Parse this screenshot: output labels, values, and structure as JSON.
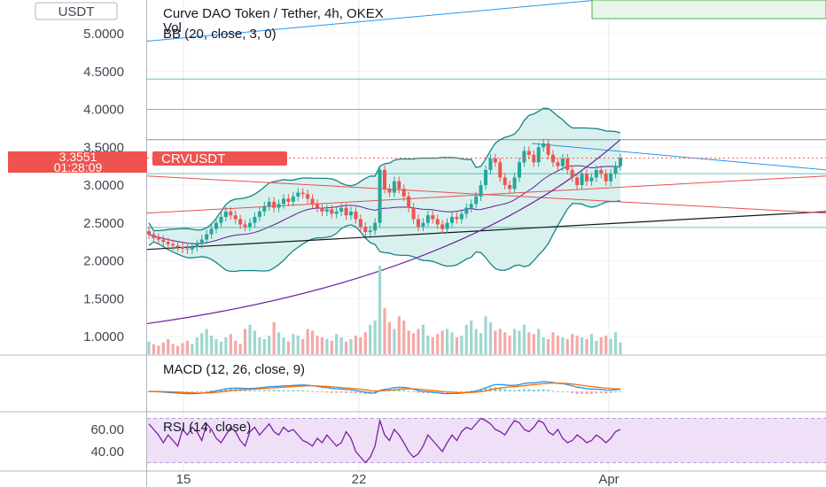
{
  "currency_label": "USDT",
  "title": "Curve DAO Token / Tether, 4h, OKEX",
  "volume_label": "Vol",
  "bb_label": "BB (20, close, 3, 0)",
  "macd_label": "MACD (12, 26, close, 9)",
  "rsi_label": "RSI (14, close)",
  "price_tag": {
    "symbol": "CRVUSDT",
    "price": "3.3551",
    "countdown": "01:28:09",
    "color": "#ef5350"
  },
  "colors": {
    "up": "#26a69a",
    "down": "#ef5350",
    "bb_band": "#138484",
    "bb_fill": "#cfeeea",
    "rsi_fill": "#efe0f7",
    "rsi_line": "#7b1fa2",
    "macd_line": "#2196f3",
    "signal_line": "#ff6d00",
    "trend_black": "#131722",
    "trend_purple": "#6a1b9a",
    "trend_red": "#e65050",
    "trend_blue": "#2196f3"
  },
  "chart_data": [
    {
      "type": "candlestick",
      "title": "Curve DAO Token / Tether, 4h, OKEX",
      "ylabel": "USDT",
      "ylim": [
        0.75,
        5.35
      ],
      "y_ticks": [
        "5.0000",
        "4.5000",
        "4.0000",
        "3.5000",
        "3.0000",
        "2.5000",
        "2.0000",
        "1.5000",
        "1.0000"
      ],
      "x_ticks": [
        "15",
        "22",
        "Apr"
      ],
      "last_price": 3.3551,
      "closes": [
        2.35,
        2.3,
        2.28,
        2.25,
        2.22,
        2.2,
        2.18,
        2.16,
        2.15,
        2.18,
        2.22,
        2.28,
        2.35,
        2.42,
        2.5,
        2.58,
        2.65,
        2.6,
        2.55,
        2.48,
        2.45,
        2.5,
        2.58,
        2.65,
        2.72,
        2.78,
        2.7,
        2.75,
        2.82,
        2.78,
        2.85,
        2.9,
        2.88,
        2.82,
        2.75,
        2.7,
        2.65,
        2.68,
        2.62,
        2.65,
        2.7,
        2.6,
        2.65,
        2.55,
        2.45,
        2.38,
        2.4,
        2.5,
        3.2,
        2.95,
        2.9,
        3.05,
        2.95,
        2.85,
        2.7,
        2.55,
        2.45,
        2.5,
        2.6,
        2.55,
        2.48,
        2.42,
        2.5,
        2.58,
        2.55,
        2.62,
        2.7,
        2.75,
        2.85,
        3.0,
        3.2,
        3.35,
        3.3,
        3.1,
        3.0,
        2.95,
        3.1,
        3.3,
        3.45,
        3.4,
        3.3,
        3.5,
        3.55,
        3.4,
        3.3,
        3.25,
        3.35,
        3.2,
        3.1,
        3.0,
        3.15,
        3.05,
        3.1,
        3.2,
        3.15,
        3.05,
        3.15,
        3.25,
        3.36
      ],
      "volumes": [
        0.15,
        0.12,
        0.1,
        0.14,
        0.18,
        0.12,
        0.1,
        0.13,
        0.16,
        0.12,
        0.2,
        0.25,
        0.3,
        0.22,
        0.18,
        0.15,
        0.2,
        0.24,
        0.16,
        0.12,
        0.3,
        0.35,
        0.28,
        0.2,
        0.18,
        0.22,
        0.38,
        0.26,
        0.2,
        0.15,
        0.24,
        0.22,
        0.18,
        0.3,
        0.28,
        0.22,
        0.2,
        0.18,
        0.16,
        0.24,
        0.2,
        0.15,
        0.18,
        0.22,
        0.2,
        0.26,
        0.35,
        0.4,
        1.05,
        0.55,
        0.38,
        0.3,
        0.45,
        0.4,
        0.28,
        0.25,
        0.3,
        0.35,
        0.22,
        0.2,
        0.24,
        0.28,
        0.3,
        0.26,
        0.2,
        0.22,
        0.35,
        0.4,
        0.3,
        0.25,
        0.45,
        0.38,
        0.28,
        0.3,
        0.26,
        0.22,
        0.3,
        0.28,
        0.35,
        0.26,
        0.24,
        0.3,
        0.2,
        0.18,
        0.26,
        0.22,
        0.2,
        0.18,
        0.24,
        0.22,
        0.2,
        0.18,
        0.24,
        0.16,
        0.2,
        0.22,
        0.18,
        0.26,
        0.14
      ]
    },
    {
      "type": "line",
      "title": "MACD (12, 26, close, 9)",
      "series": [],
      "note_series": "macd_and_signal"
    },
    {
      "type": "line",
      "title": "RSI (14, close)",
      "y_ticks": [
        "60.00",
        "40.00"
      ],
      "ylim": [
        25,
        75
      ],
      "band": [
        30,
        70
      ],
      "values": [
        65,
        60,
        55,
        48,
        55,
        50,
        45,
        60,
        55,
        62,
        58,
        50,
        65,
        60,
        52,
        48,
        55,
        62,
        58,
        50,
        45,
        58,
        62,
        55,
        60,
        65,
        58,
        55,
        62,
        58,
        60,
        55,
        50,
        48,
        45,
        52,
        48,
        55,
        50,
        45,
        48,
        58,
        52,
        40,
        35,
        30,
        35,
        45,
        68,
        55,
        50,
        60,
        55,
        48,
        40,
        35,
        38,
        45,
        55,
        50,
        45,
        40,
        48,
        55,
        50,
        58,
        62,
        60,
        65,
        70,
        68,
        65,
        60,
        58,
        55,
        62,
        68,
        66,
        60,
        58,
        62,
        68,
        66,
        58,
        55,
        60,
        52,
        48,
        50,
        55,
        52,
        48,
        50,
        55,
        52,
        48,
        52,
        58,
        60
      ]
    }
  ]
}
